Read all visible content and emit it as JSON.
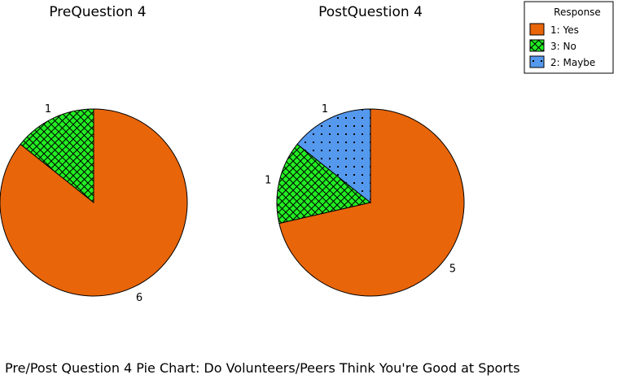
{
  "caption": "Pre/Post Question 4 Pie Chart: Do Volunteers/Peers Think You're Good at Sports",
  "colors": {
    "yes": "#e8650a",
    "no": "#22ee22",
    "maybe": "#5599ee",
    "outline": "#000000"
  },
  "chart_data": {
    "type": "pie",
    "legend": {
      "title": "Response",
      "placement": "top-right",
      "entries": [
        {
          "key": "yes",
          "label": "1: Yes",
          "pattern": "solid"
        },
        {
          "key": "no",
          "label": "3: No",
          "pattern": "crosshatch"
        },
        {
          "key": "maybe",
          "label": "2: Maybe",
          "pattern": "dots"
        }
      ]
    },
    "charts": [
      {
        "title": "PreQuestion 4",
        "slices": [
          {
            "key": "yes",
            "label": "1: Yes",
            "value": 6,
            "display": "6"
          },
          {
            "key": "no",
            "label": "3: No",
            "value": 1,
            "display": "1"
          }
        ]
      },
      {
        "title": "PostQuestion 4",
        "slices": [
          {
            "key": "yes",
            "label": "1: Yes",
            "value": 5,
            "display": "5"
          },
          {
            "key": "no",
            "label": "3: No",
            "value": 1,
            "display": "1"
          },
          {
            "key": "maybe",
            "label": "2: Maybe",
            "value": 1,
            "display": "1"
          }
        ]
      }
    ]
  }
}
